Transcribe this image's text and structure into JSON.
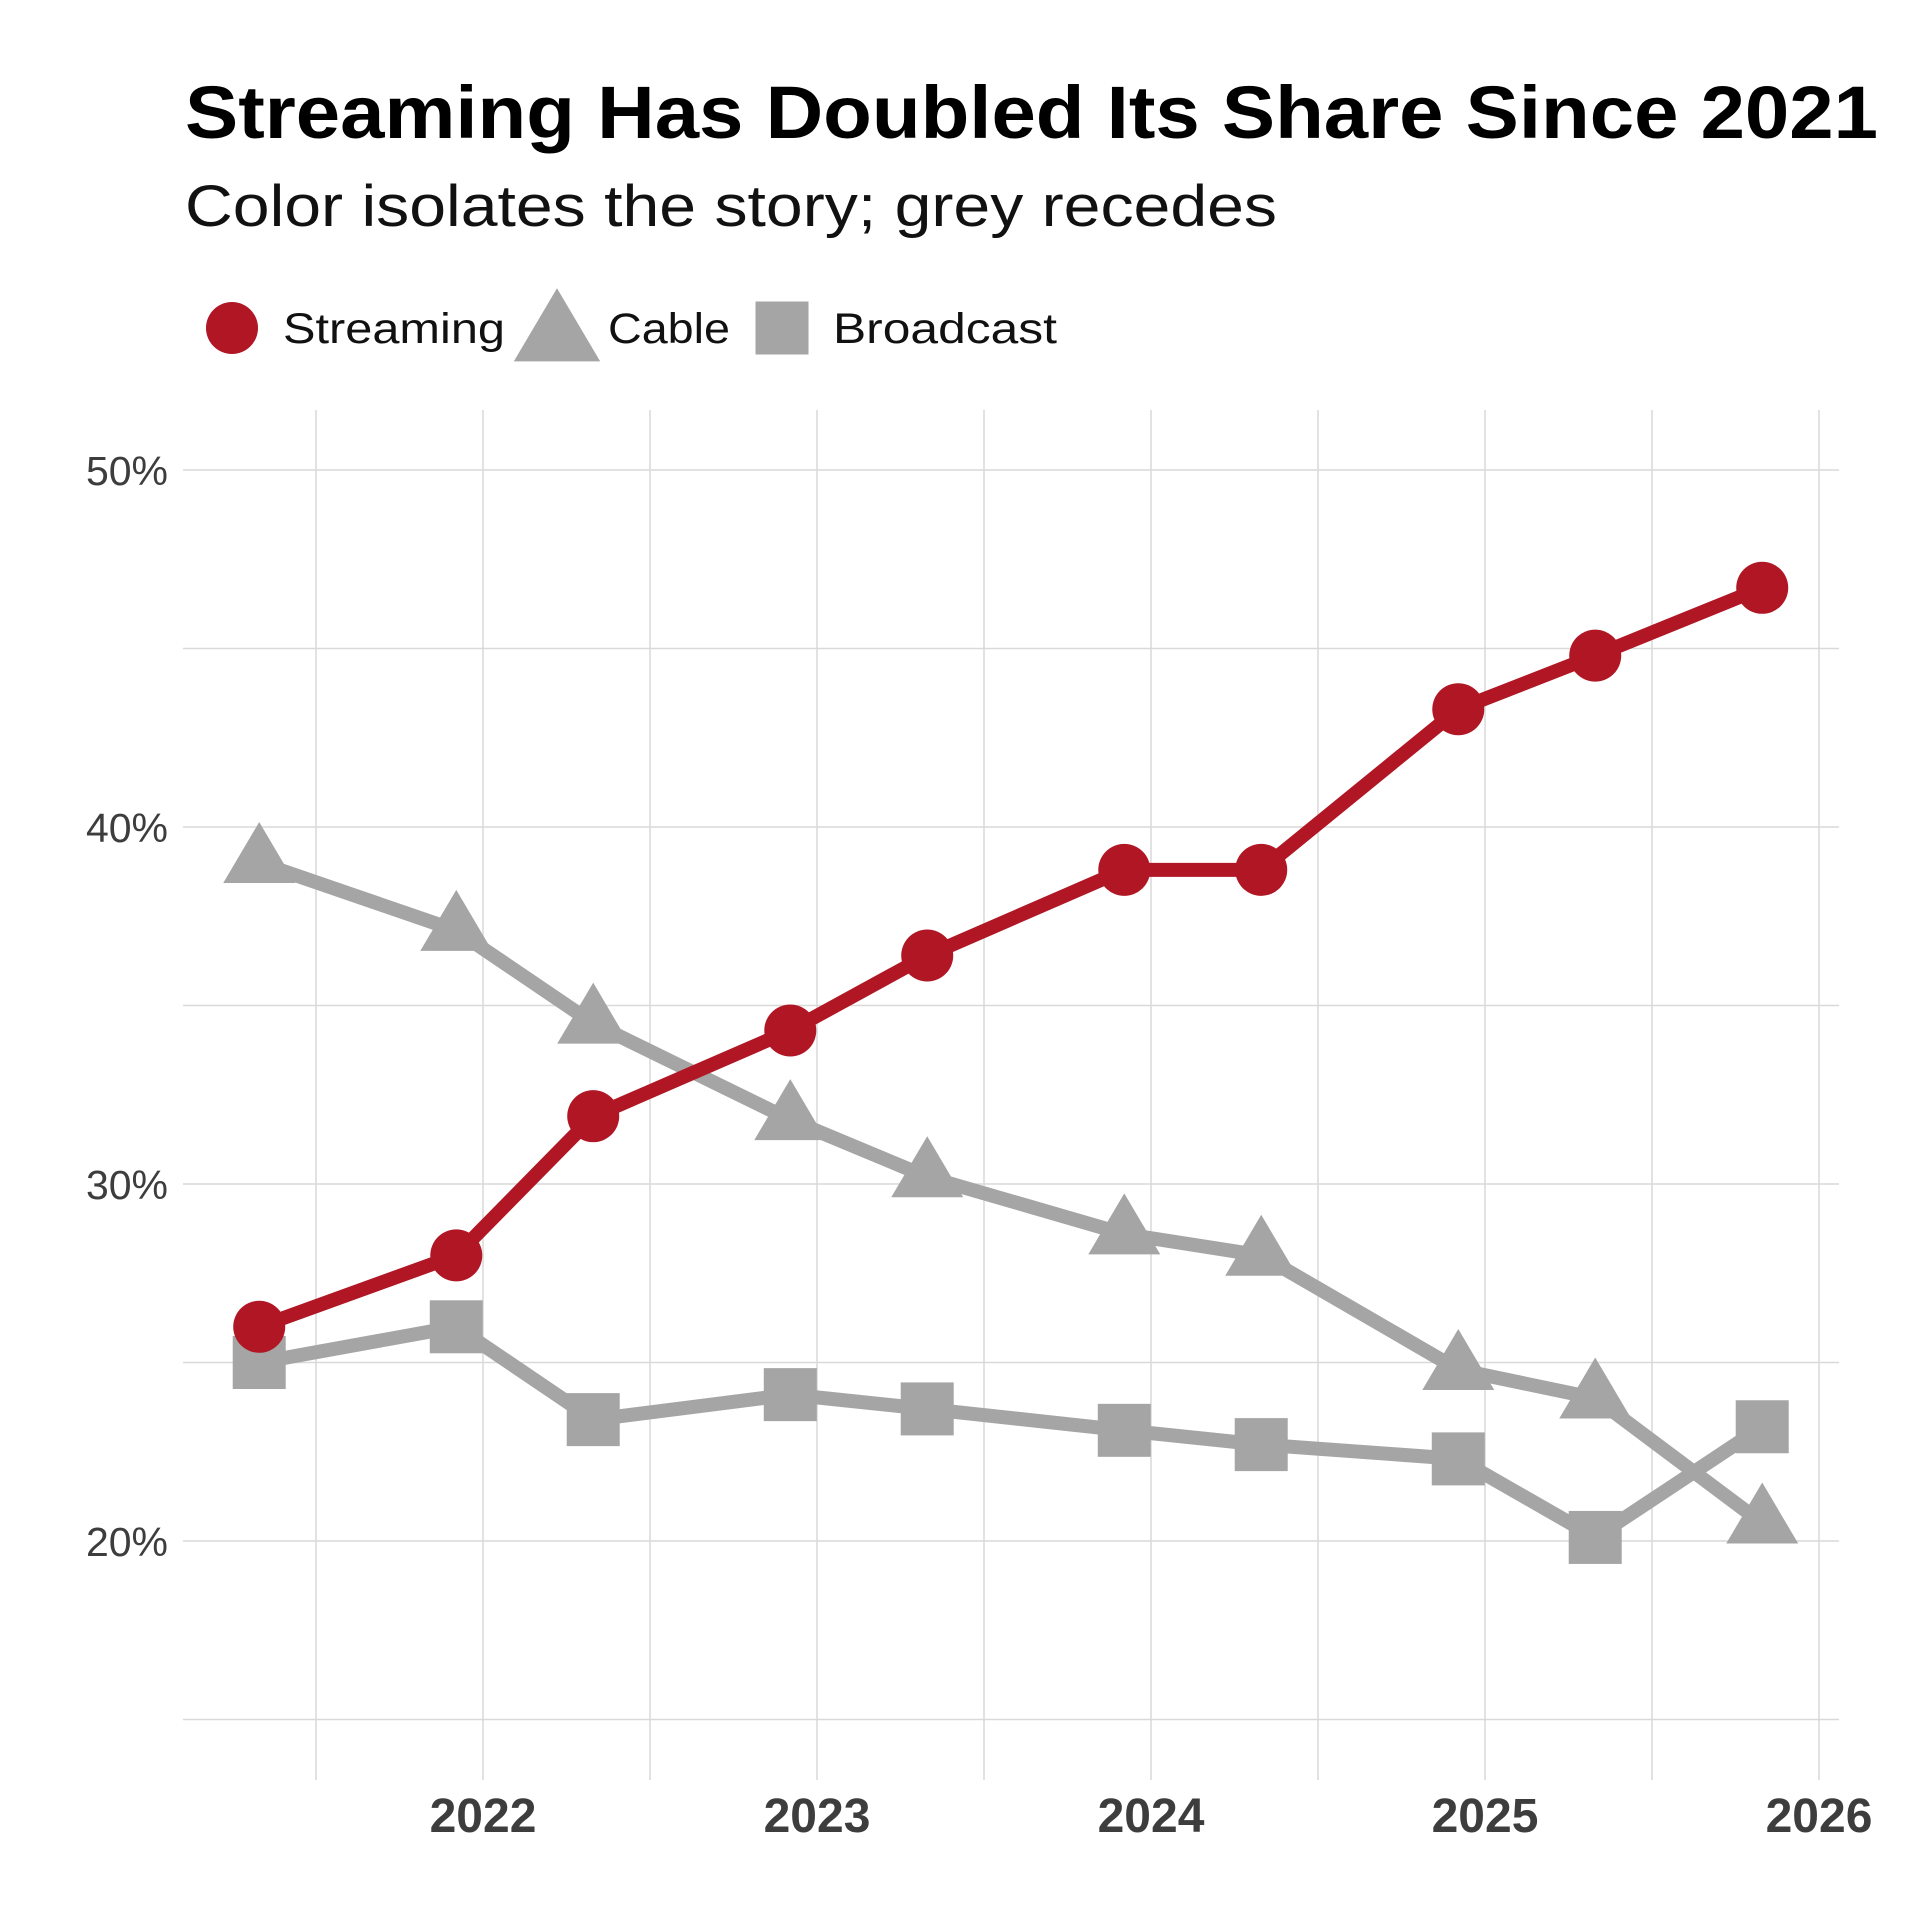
{
  "chart_data": {
    "type": "line",
    "title": "Streaming Has Doubled Its Share Since 2021",
    "subtitle": "Color isolates the story; grey recedes",
    "xlabel": "",
    "ylabel": "",
    "x": [
      2021.33,
      2021.92,
      2022.33,
      2022.92,
      2023.33,
      2023.92,
      2024.33,
      2024.92,
      2025.33,
      2025.83
    ],
    "x_ticks": [
      2022,
      2023,
      2024,
      2025,
      2026
    ],
    "x_tick_labels": [
      "2022",
      "2023",
      "2024",
      "2025",
      "2026"
    ],
    "x_minor_ticks": [
      2021.5,
      2022.5,
      2023.5,
      2024.5,
      2025.5
    ],
    "xlim": [
      2021.1,
      2026.07
    ],
    "y_ticks": [
      20,
      30,
      40,
      50
    ],
    "y_tick_labels": [
      "20%",
      "30%",
      "40%",
      "50%"
    ],
    "y_minor_ticks": [
      15,
      25,
      35,
      45
    ],
    "ylim": [
      13.3,
      51.7
    ],
    "grid": true,
    "legend_position": "top-left",
    "series": [
      {
        "name": "Streaming",
        "marker": "circle",
        "color": "#B01624",
        "values": [
          26.0,
          28.0,
          31.9,
          34.3,
          36.4,
          38.8,
          38.8,
          43.3,
          44.8,
          46.7
        ]
      },
      {
        "name": "Cable",
        "marker": "triangle",
        "color": "#A5A5A5",
        "values": [
          39.0,
          37.1,
          34.5,
          31.8,
          30.2,
          28.6,
          28.0,
          24.8,
          24.0,
          20.5
        ]
      },
      {
        "name": "Broadcast",
        "marker": "square",
        "color": "#A5A5A5",
        "values": [
          25.0,
          26.0,
          23.4,
          24.1,
          23.7,
          23.1,
          22.7,
          22.3,
          20.1,
          23.2
        ]
      }
    ]
  }
}
